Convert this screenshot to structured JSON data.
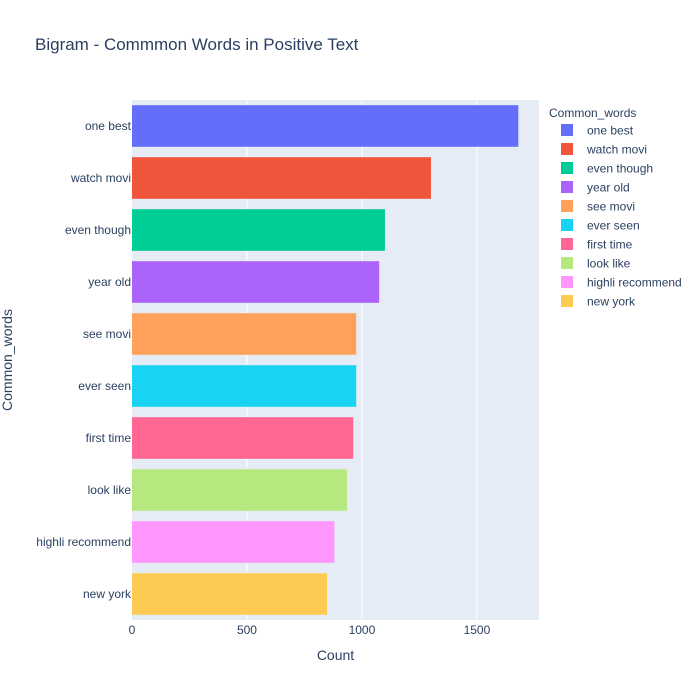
{
  "chart_data": {
    "type": "bar",
    "orientation": "horizontal",
    "title": "Bigram - Commmon Words in Positive Text",
    "xlabel": "Count",
    "ylabel": "Common_words",
    "legend_title": "Common_words",
    "legend_position": "right",
    "grid": true,
    "xlim": [
      0,
      1770
    ],
    "xticks": [
      0,
      500,
      1000,
      1500
    ],
    "categories": [
      "one best",
      "watch movi",
      "even though",
      "year old",
      "see movi",
      "ever seen",
      "first time",
      "look like",
      "highli recommend",
      "new york"
    ],
    "values": [
      1680,
      1300,
      1100,
      1075,
      975,
      975,
      962,
      935,
      880,
      848
    ],
    "colors": [
      "#636efa",
      "#EF553B",
      "#00cc96",
      "#ab63fa",
      "#FFA15A",
      "#19d3f3",
      "#FF6692",
      "#B6E880",
      "#FF97FF",
      "#FECB52"
    ],
    "plot_background": "#E5ECF6",
    "gridline_color": "#ffffff",
    "text_color": "#2a3f5f"
  }
}
